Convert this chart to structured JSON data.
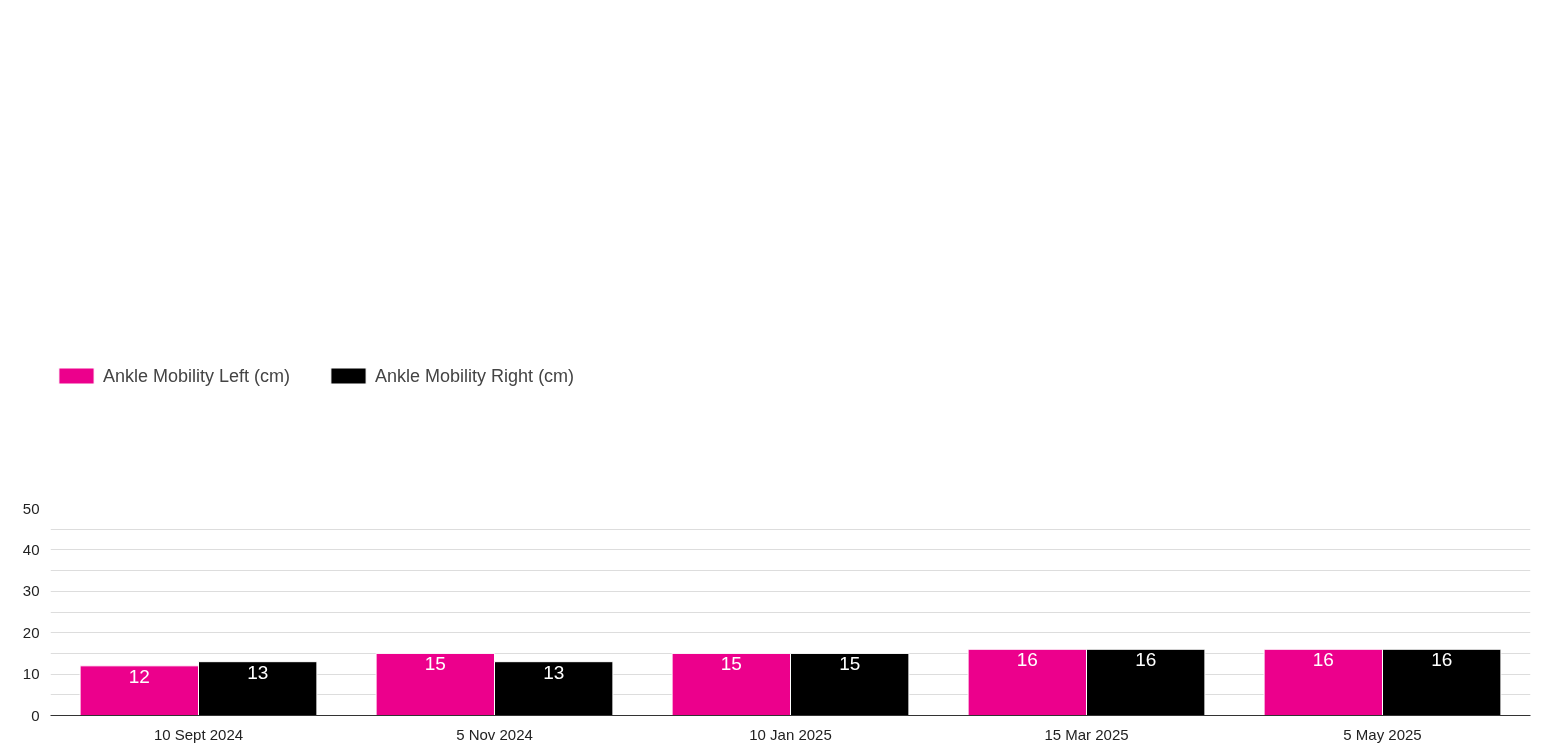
{
  "chart_data": {
    "type": "bar",
    "categories": [
      "10 Sept 2024",
      "5 Nov 2024",
      "10 Jan 2025",
      "15 Mar 2025",
      "5 May 2025"
    ],
    "series": [
      {
        "name": "Ankle Mobility Left (cm)",
        "color": "#ec008c",
        "values": [
          12,
          15,
          15,
          16,
          16
        ]
      },
      {
        "name": "Ankle Mobility Right (cm)",
        "color": "#000000",
        "values": [
          13,
          13,
          15,
          16,
          16
        ]
      }
    ],
    "ylim": [
      0,
      50
    ],
    "yticks": [
      0,
      {
        "value": 5,
        "label": null
      },
      10,
      {
        "value": 15,
        "label": null
      },
      20,
      {
        "value": 25,
        "label": null
      },
      30,
      {
        "value": 35,
        "label": null
      },
      40,
      {
        "value": 45,
        "label": null
      },
      50
    ],
    "grid": "y",
    "legend": "top left",
    "data_labels": true
  }
}
